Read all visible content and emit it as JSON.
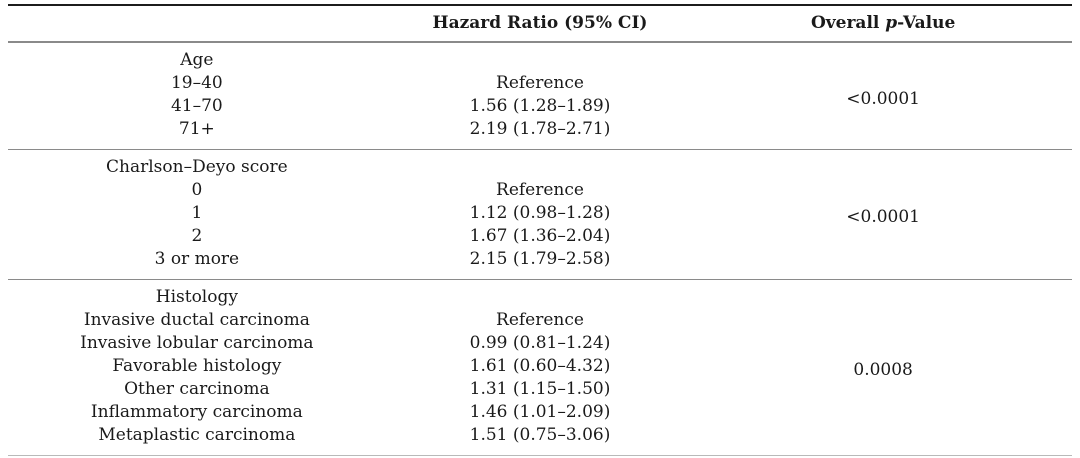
{
  "table": {
    "header": {
      "label_col": "",
      "hazard_ratio_col": "Hazard Ratio (95% CI)",
      "p_value_col": {
        "prefix": "Overall ",
        "italic": "p",
        "suffix": "-Value"
      }
    },
    "sections": [
      {
        "group": "Age",
        "p_value": "<0.0001",
        "rows": [
          {
            "label": "19–40",
            "hr": "Reference"
          },
          {
            "label": "41–70",
            "hr": "1.56 (1.28–1.89)"
          },
          {
            "label": "71+",
            "hr": "2.19 (1.78–2.71)"
          }
        ]
      },
      {
        "group": "Charlson–Deyo score",
        "p_value": "<0.0001",
        "rows": [
          {
            "label": "0",
            "hr": "Reference"
          },
          {
            "label": "1",
            "hr": "1.12 (0.98–1.28)"
          },
          {
            "label": "2",
            "hr": "1.67 (1.36–2.04)"
          },
          {
            "label": "3 or more",
            "hr": "2.15 (1.79–2.58)"
          }
        ]
      },
      {
        "group": "Histology",
        "p_value": "0.0008",
        "rows": [
          {
            "label": "Invasive ductal carcinoma",
            "hr": "Reference"
          },
          {
            "label": "Invasive lobular carcinoma",
            "hr": "0.99 (0.81–1.24)"
          },
          {
            "label": "Favorable histology",
            "hr": "1.61 (0.60–4.32)"
          },
          {
            "label": "Other carcinoma",
            "hr": "1.31 (1.15–1.50)"
          },
          {
            "label": "Inflammatory carcinoma",
            "hr": "1.46 (1.01–2.09)"
          },
          {
            "label": "Metaplastic carcinoma",
            "hr": "1.51 (0.75–3.06)"
          }
        ]
      }
    ]
  }
}
